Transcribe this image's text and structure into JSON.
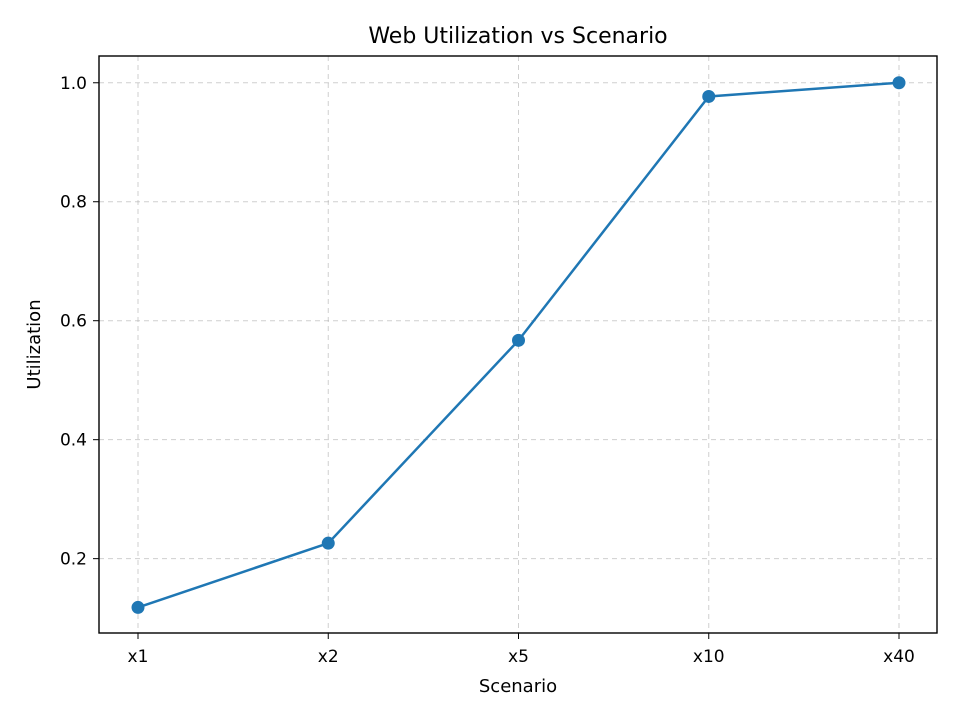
{
  "chart_data": {
    "type": "line",
    "title": "Web Utilization vs Scenario",
    "xlabel": "Scenario",
    "ylabel": "Utilization",
    "categories": [
      "x1",
      "x2",
      "x5",
      "x10",
      "x40"
    ],
    "series": [
      {
        "values": [
          0.118,
          0.226,
          0.567,
          0.977,
          1.0
        ],
        "color": "#1f77b4",
        "marker": "circle"
      }
    ],
    "ylim": [
      0.075,
      1.045
    ],
    "yticks": [
      0.2,
      0.4,
      0.6,
      0.8,
      1.0
    ],
    "ytick_labels": [
      "0.2",
      "0.4",
      "0.6",
      "0.8",
      "1.0"
    ],
    "grid": true,
    "grid_style": "dashed",
    "legend": false
  }
}
